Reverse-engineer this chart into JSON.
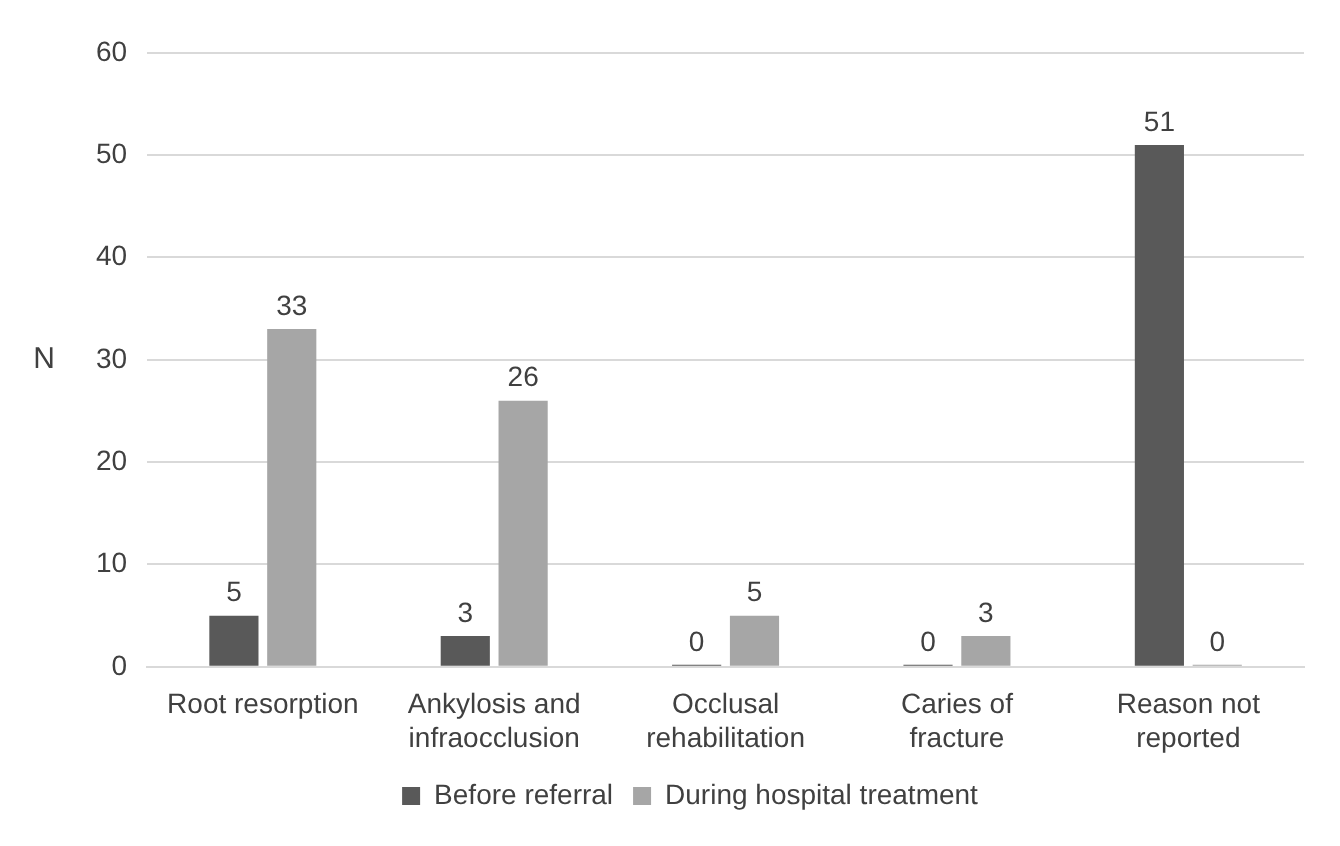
{
  "chart_data": {
    "type": "bar",
    "ylabel": "N",
    "categories": [
      "Root resorption",
      "Ankylosis and infraocclusion",
      "Occlusal rehabilitation",
      "Caries of fracture",
      "Reason not reported"
    ],
    "series": [
      {
        "name": "Before referral",
        "color": "#595959",
        "values": [
          5,
          3,
          0,
          0,
          51
        ]
      },
      {
        "name": "During hospital treatment",
        "color": "#a6a6a6",
        "values": [
          33,
          26,
          5,
          3,
          0
        ]
      }
    ],
    "ylim": [
      0,
      60
    ],
    "yticks": [
      0,
      10,
      20,
      30,
      40,
      50,
      60
    ],
    "grid": "y",
    "legend": "bottom",
    "data_labels": true
  }
}
